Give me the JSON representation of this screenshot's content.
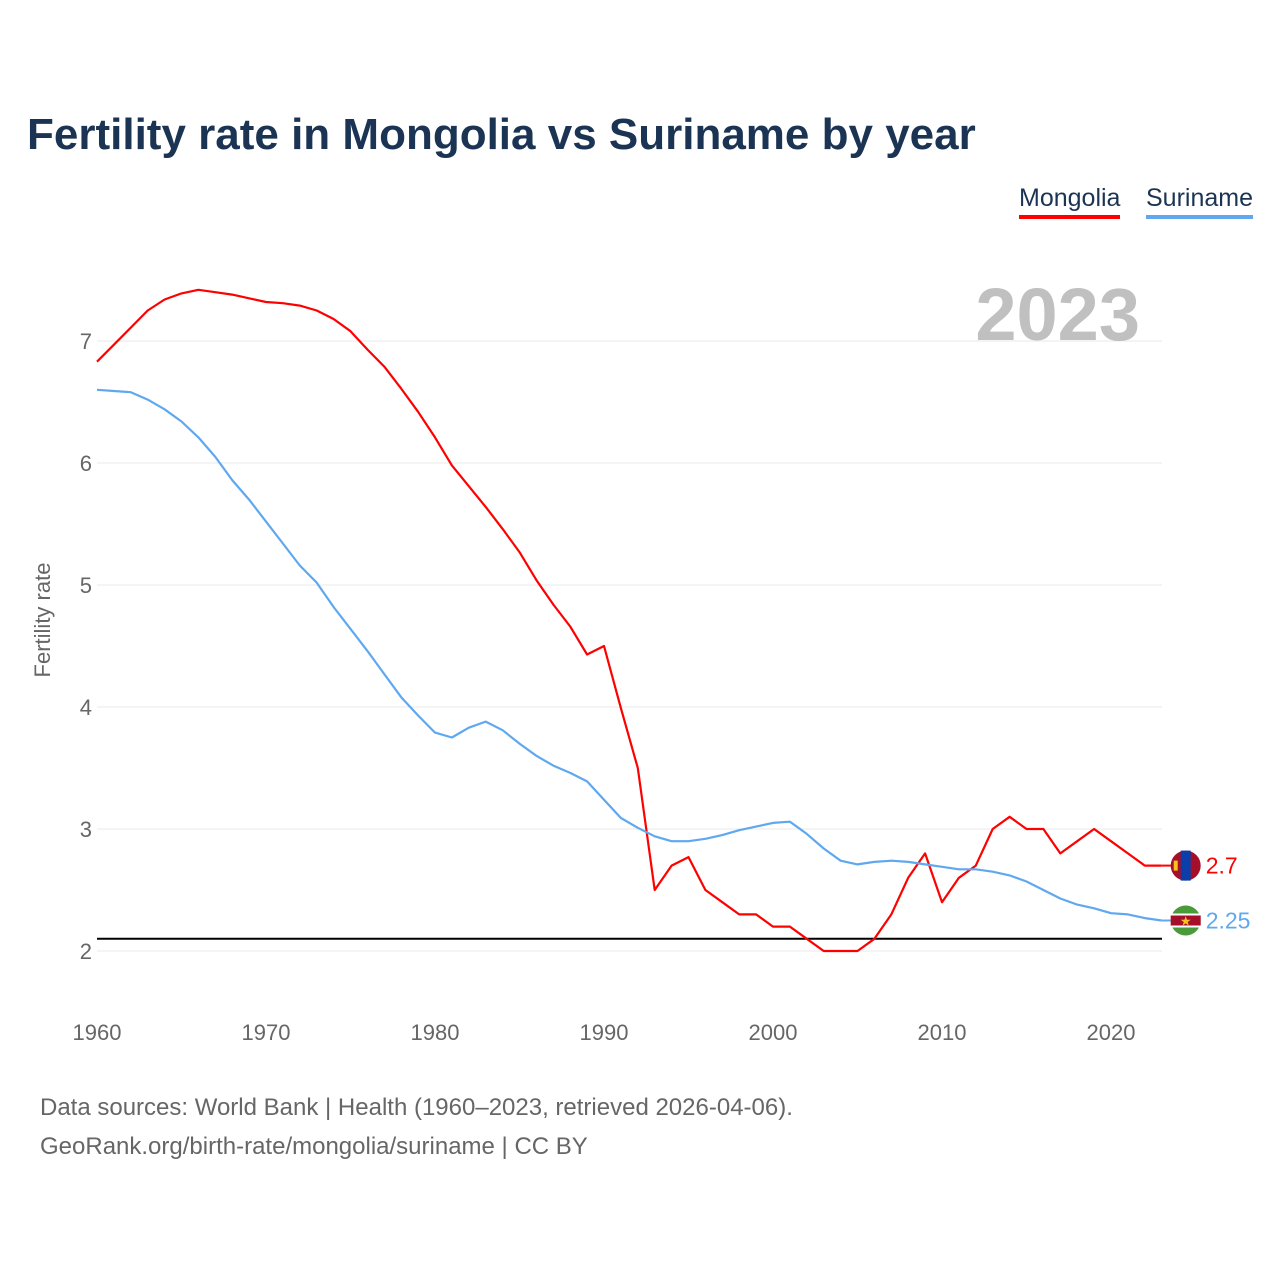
{
  "chart_data": {
    "type": "line",
    "title": "Fertility rate in Mongolia vs Suriname by year",
    "ylabel": "Fertility rate",
    "xlabel": "",
    "year_label": "2023",
    "xlim": [
      1960,
      2023
    ],
    "ylim": [
      1.5,
      7.5
    ],
    "xticks": [
      1960,
      1970,
      1980,
      1990,
      2000,
      2010,
      2020
    ],
    "yticks": [
      2,
      3,
      4,
      5,
      6,
      7
    ],
    "reference_line": 2.1,
    "grid": true,
    "legend_placement": "top-right",
    "x": [
      1960,
      1961,
      1962,
      1963,
      1964,
      1965,
      1966,
      1967,
      1968,
      1969,
      1970,
      1971,
      1972,
      1973,
      1974,
      1975,
      1976,
      1977,
      1978,
      1979,
      1980,
      1981,
      1982,
      1983,
      1984,
      1985,
      1986,
      1987,
      1988,
      1989,
      1990,
      1991,
      1992,
      1993,
      1994,
      1995,
      1996,
      1997,
      1998,
      1999,
      2000,
      2001,
      2002,
      2003,
      2004,
      2005,
      2006,
      2007,
      2008,
      2009,
      2010,
      2011,
      2012,
      2013,
      2014,
      2015,
      2016,
      2017,
      2018,
      2019,
      2020,
      2021,
      2022,
      2023
    ],
    "series": [
      {
        "name": "Mongolia",
        "color": "#ff0000",
        "end_label": "2.7",
        "values": [
          6.83,
          6.97,
          7.11,
          7.25,
          7.34,
          7.39,
          7.42,
          7.4,
          7.38,
          7.35,
          7.32,
          7.31,
          7.29,
          7.25,
          7.18,
          7.08,
          6.93,
          6.79,
          6.61,
          6.42,
          6.21,
          5.98,
          5.81,
          5.64,
          5.46,
          5.27,
          5.04,
          4.84,
          4.66,
          4.43,
          4.5,
          3.99,
          3.5,
          2.5,
          2.7,
          2.77,
          2.5,
          2.4,
          2.3,
          2.3,
          2.2,
          2.2,
          2.1,
          2.0,
          2.0,
          2.0,
          2.1,
          2.3,
          2.6,
          2.8,
          2.4,
          2.6,
          2.7,
          3.0,
          3.1,
          3.0,
          3.0,
          2.8,
          2.9,
          3.0,
          2.9,
          2.8,
          2.7,
          2.7
        ]
      },
      {
        "name": "Suriname",
        "color": "#5fa8f0",
        "end_label": "2.25",
        "values": [
          6.6,
          6.59,
          6.58,
          6.52,
          6.44,
          6.34,
          6.21,
          6.05,
          5.86,
          5.7,
          5.52,
          5.34,
          5.16,
          5.02,
          4.82,
          4.64,
          4.46,
          4.27,
          4.08,
          3.93,
          3.79,
          3.75,
          3.83,
          3.88,
          3.81,
          3.7,
          3.6,
          3.52,
          3.46,
          3.39,
          3.24,
          3.09,
          3.01,
          2.94,
          2.9,
          2.9,
          2.92,
          2.95,
          2.99,
          3.02,
          3.05,
          3.06,
          2.96,
          2.84,
          2.74,
          2.71,
          2.73,
          2.74,
          2.73,
          2.71,
          2.69,
          2.67,
          2.67,
          2.65,
          2.62,
          2.57,
          2.5,
          2.43,
          2.38,
          2.35,
          2.31,
          2.3,
          2.27,
          2.25
        ]
      }
    ]
  },
  "footer": {
    "line1": "Data sources: World Bank | Health (1960–2023, retrieved 2026-04-06).",
    "line2": "GeoRank.org/birth-rate/mongolia/suriname | CC BY"
  }
}
